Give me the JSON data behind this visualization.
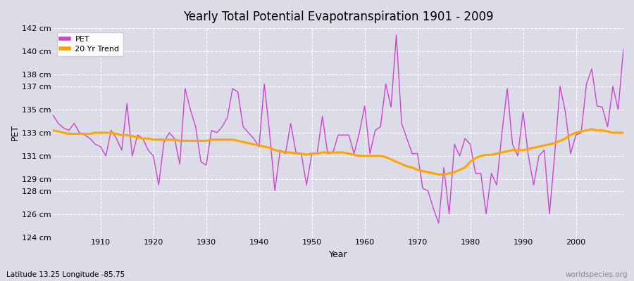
{
  "title": "Yearly Total Potential Evapotranspiration 1901 - 2009",
  "xlabel": "Year",
  "ylabel": "PET",
  "subtitle": "Latitude 13.25 Longitude -85.75",
  "watermark": "worldspecies.org",
  "pet_color": "#cc44cc",
  "trend_color": "#ffa500",
  "background_color": "#dcdce8",
  "plot_bg_color": "#dcdce8",
  "ylim": [
    124,
    142
  ],
  "yticks": [
    124,
    126,
    128,
    129,
    131,
    133,
    135,
    137,
    138,
    140,
    142
  ],
  "xlim": [
    1901,
    2009
  ],
  "xticks": [
    1910,
    1920,
    1930,
    1940,
    1950,
    1960,
    1970,
    1980,
    1990,
    2000
  ],
  "years": [
    1901,
    1902,
    1903,
    1904,
    1905,
    1906,
    1907,
    1908,
    1909,
    1910,
    1911,
    1912,
    1913,
    1914,
    1915,
    1916,
    1917,
    1918,
    1919,
    1920,
    1921,
    1922,
    1923,
    1924,
    1925,
    1926,
    1927,
    1928,
    1929,
    1930,
    1931,
    1932,
    1933,
    1934,
    1935,
    1936,
    1937,
    1938,
    1939,
    1940,
    1941,
    1942,
    1943,
    1944,
    1945,
    1946,
    1947,
    1948,
    1949,
    1950,
    1951,
    1952,
    1953,
    1954,
    1955,
    1956,
    1957,
    1958,
    1959,
    1960,
    1961,
    1962,
    1963,
    1964,
    1965,
    1966,
    1967,
    1968,
    1969,
    1970,
    1971,
    1972,
    1973,
    1974,
    1975,
    1976,
    1977,
    1978,
    1979,
    1980,
    1981,
    1982,
    1983,
    1984,
    1985,
    1986,
    1987,
    1988,
    1989,
    1990,
    1991,
    1992,
    1993,
    1994,
    1995,
    1996,
    1997,
    1998,
    1999,
    2000,
    2001,
    2002,
    2003,
    2004,
    2005,
    2006,
    2007,
    2008,
    2009
  ],
  "pet_values": [
    134.5,
    133.8,
    133.4,
    133.2,
    133.8,
    133.0,
    132.8,
    132.5,
    132.0,
    131.8,
    131.0,
    133.2,
    132.5,
    131.5,
    135.5,
    131.0,
    132.8,
    132.5,
    131.5,
    131.0,
    128.5,
    132.2,
    133.0,
    132.5,
    130.3,
    136.8,
    135.0,
    133.5,
    130.5,
    130.2,
    133.2,
    133.0,
    133.5,
    134.3,
    136.8,
    136.5,
    133.5,
    133.0,
    132.5,
    131.8,
    137.2,
    133.0,
    128.0,
    131.5,
    131.2,
    133.8,
    131.3,
    131.2,
    128.5,
    131.2,
    131.2,
    134.4,
    131.2,
    131.3,
    132.8,
    132.8,
    132.8,
    131.2,
    133.0,
    135.3,
    131.2,
    133.2,
    133.5,
    137.2,
    135.2,
    141.4,
    133.8,
    132.5,
    131.2,
    131.2,
    128.2,
    128.0,
    126.5,
    125.2,
    130.0,
    126.0,
    132.0,
    131.0,
    132.5,
    132.0,
    129.5,
    129.5,
    126.0,
    129.5,
    128.5,
    133.0,
    136.8,
    132.0,
    131.0,
    134.8,
    131.0,
    128.5,
    131.0,
    131.5,
    126.0,
    131.2,
    137.0,
    134.8,
    131.2,
    132.8,
    133.0,
    137.2,
    138.5,
    135.3,
    135.2,
    133.5,
    137.0,
    135.0,
    140.2
  ],
  "trend_values": [
    133.2,
    133.1,
    133.0,
    132.9,
    132.9,
    132.9,
    132.9,
    132.9,
    133.0,
    133.0,
    133.0,
    133.0,
    132.9,
    132.8,
    132.8,
    132.7,
    132.6,
    132.5,
    132.5,
    132.4,
    132.4,
    132.4,
    132.4,
    132.4,
    132.3,
    132.3,
    132.3,
    132.3,
    132.3,
    132.3,
    132.4,
    132.4,
    132.4,
    132.4,
    132.4,
    132.3,
    132.2,
    132.1,
    132.0,
    131.9,
    131.8,
    131.7,
    131.5,
    131.4,
    131.3,
    131.3,
    131.2,
    131.2,
    131.1,
    131.2,
    131.2,
    131.3,
    131.3,
    131.3,
    131.3,
    131.3,
    131.2,
    131.1,
    131.0,
    131.0,
    131.0,
    131.0,
    131.0,
    130.9,
    130.7,
    130.5,
    130.3,
    130.1,
    130.0,
    129.8,
    129.7,
    129.6,
    129.5,
    129.4,
    129.4,
    129.5,
    129.6,
    129.8,
    130.0,
    130.5,
    130.8,
    131.0,
    131.1,
    131.1,
    131.2,
    131.3,
    131.4,
    131.5,
    131.5,
    131.5,
    131.6,
    131.7,
    131.8,
    131.9,
    132.0,
    132.1,
    132.3,
    132.5,
    132.8,
    133.0,
    133.1,
    133.2,
    133.3,
    133.2,
    133.2,
    133.1,
    133.0,
    133.0,
    133.0
  ]
}
